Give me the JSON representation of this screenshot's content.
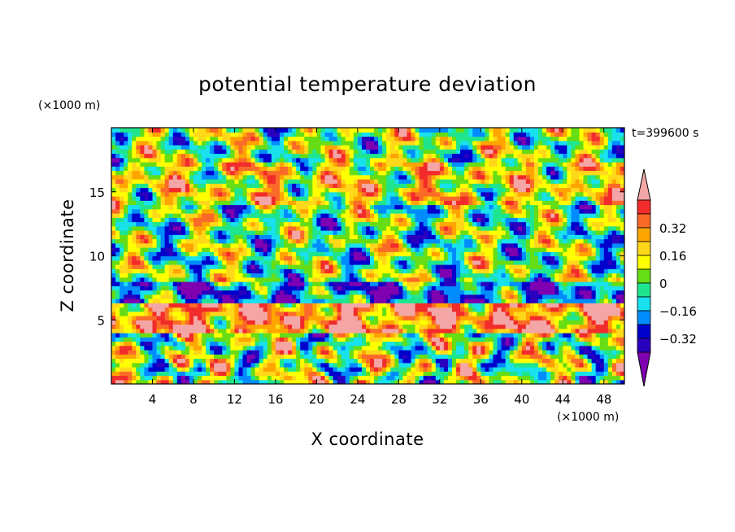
{
  "chart_data": {
    "type": "heatmap",
    "title": "potential temperature deviation",
    "time_label": "t=399600 s",
    "xlabel": "X coordinate",
    "ylabel": "Z coordinate",
    "x_unit": "(×1000 m)",
    "y_unit": "(×1000 m)",
    "xlim": [
      0,
      50
    ],
    "ylim": [
      0,
      20
    ],
    "x_ticks": [
      "4",
      "8",
      "12",
      "16",
      "20",
      "24",
      "28",
      "32",
      "36",
      "40",
      "44",
      "48"
    ],
    "y_ticks": [
      "5",
      "10",
      "15"
    ],
    "colorbar": {
      "labels": [
        "0.32",
        "0.16",
        "0",
        "−0.16",
        "−0.32"
      ],
      "levels_top_to_bottom": [
        0.48,
        0.4,
        0.32,
        0.24,
        0.16,
        0.08,
        0.0,
        -0.08,
        -0.16,
        -0.24,
        -0.32,
        -0.4
      ],
      "colors": [
        "#f4a6a6",
        "#f22b2b",
        "#fa6a28",
        "#ffa500",
        "#ffd81a",
        "#ffff00",
        "#66dd14",
        "#1ee58e",
        "#19e1ee",
        "#008cff",
        "#0000cd",
        "#2a00bf",
        "#7e00b1"
      ],
      "extend": "both"
    },
    "bands": [
      {
        "z_from": 17.5,
        "z_to": 20,
        "value": 0.04
      },
      {
        "z_from": 14,
        "z_to": 17.5,
        "value": 0.15
      },
      {
        "z_from": 8,
        "z_to": 14,
        "value": 0.0
      },
      {
        "z_from": 6.5,
        "z_to": 8,
        "value": -0.2
      },
      {
        "z_from": 4,
        "z_to": 6.5,
        "value": 0.35
      },
      {
        "z_from": 0,
        "z_to": 4,
        "value": 0.05
      }
    ]
  }
}
